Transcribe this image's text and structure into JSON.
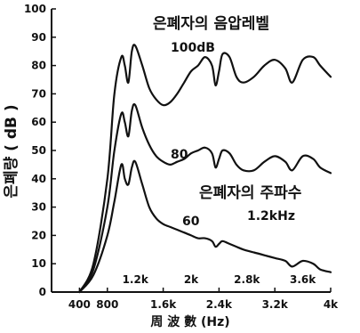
{
  "chart_data": {
    "type": "line",
    "title": "은폐자의 음압레벨",
    "subtitle": "은폐자의 주파수",
    "subtitle_value": "1.2kHz",
    "xlabel": "周 波 數 (Hz)",
    "ylabel": "은폐량 ( dB )",
    "xlim": [
      0,
      4000
    ],
    "ylim": [
      0,
      100
    ],
    "x_ticks": [
      400,
      800,
      1600,
      2400,
      3200,
      4000
    ],
    "x_tick_labels": [
      "400",
      "800",
      "1.6k",
      "2.4k",
      "3.2k",
      "4k"
    ],
    "y_ticks": [
      0,
      10,
      20,
      30,
      40,
      50,
      60,
      70,
      80,
      90,
      100
    ],
    "upper_x_labels": [
      {
        "x": 1200,
        "text": "1.2k"
      },
      {
        "x": 2000,
        "text": "2k"
      },
      {
        "x": 2800,
        "text": "2.8k"
      },
      {
        "x": 3600,
        "text": "3.6k"
      }
    ],
    "series": [
      {
        "name": "100dB",
        "x": [
          400,
          600,
          800,
          900,
          1000,
          1050,
          1100,
          1150,
          1200,
          1300,
          1400,
          1500,
          1600,
          1700,
          1800,
          1900,
          2000,
          2100,
          2200,
          2300,
          2350,
          2400,
          2450,
          2550,
          2650,
          2750,
          2900,
          3050,
          3200,
          3350,
          3450,
          3600,
          3750,
          3850,
          4000
        ],
        "y": [
          0,
          10,
          40,
          70,
          83,
          80,
          74,
          85,
          87,
          80,
          72,
          68,
          66,
          67,
          70,
          74,
          78,
          80,
          83,
          80,
          73,
          78,
          84,
          83,
          76,
          74,
          76,
          80,
          82,
          79,
          74,
          82,
          83,
          80,
          76
        ]
      },
      {
        "name": "80",
        "x": [
          400,
          600,
          800,
          900,
          1000,
          1050,
          1100,
          1150,
          1200,
          1300,
          1400,
          1500,
          1600,
          1700,
          1800,
          1900,
          2000,
          2100,
          2200,
          2300,
          2350,
          2400,
          2450,
          2550,
          2650,
          2750,
          2900,
          3050,
          3200,
          3350,
          3450,
          3600,
          3750,
          3850,
          4000
        ],
        "y": [
          0,
          8,
          30,
          50,
          63,
          60,
          55,
          64,
          66,
          58,
          52,
          48,
          46,
          45,
          46,
          47,
          49,
          50,
          51,
          49,
          44,
          47,
          50,
          49,
          45,
          43,
          43,
          46,
          48,
          46,
          43,
          48,
          47,
          44,
          42
        ]
      },
      {
        "name": "60",
        "x": [
          400,
          600,
          800,
          900,
          1000,
          1050,
          1100,
          1150,
          1200,
          1300,
          1400,
          1500,
          1600,
          1700,
          1800,
          1900,
          2000,
          2100,
          2200,
          2300,
          2350,
          2400,
          2450,
          2550,
          2650,
          2750,
          2900,
          3050,
          3200,
          3350,
          3450,
          3600,
          3750,
          3850,
          4000
        ],
        "y": [
          0,
          6,
          20,
          32,
          45,
          40,
          38,
          44,
          46,
          38,
          30,
          26,
          24,
          23,
          22,
          21,
          20,
          19,
          19,
          18,
          16,
          17,
          18,
          17,
          16,
          15,
          14,
          13,
          12,
          11,
          9,
          11,
          10,
          8,
          7
        ]
      }
    ],
    "series_labels": [
      "100dB",
      "80",
      "60"
    ]
  }
}
